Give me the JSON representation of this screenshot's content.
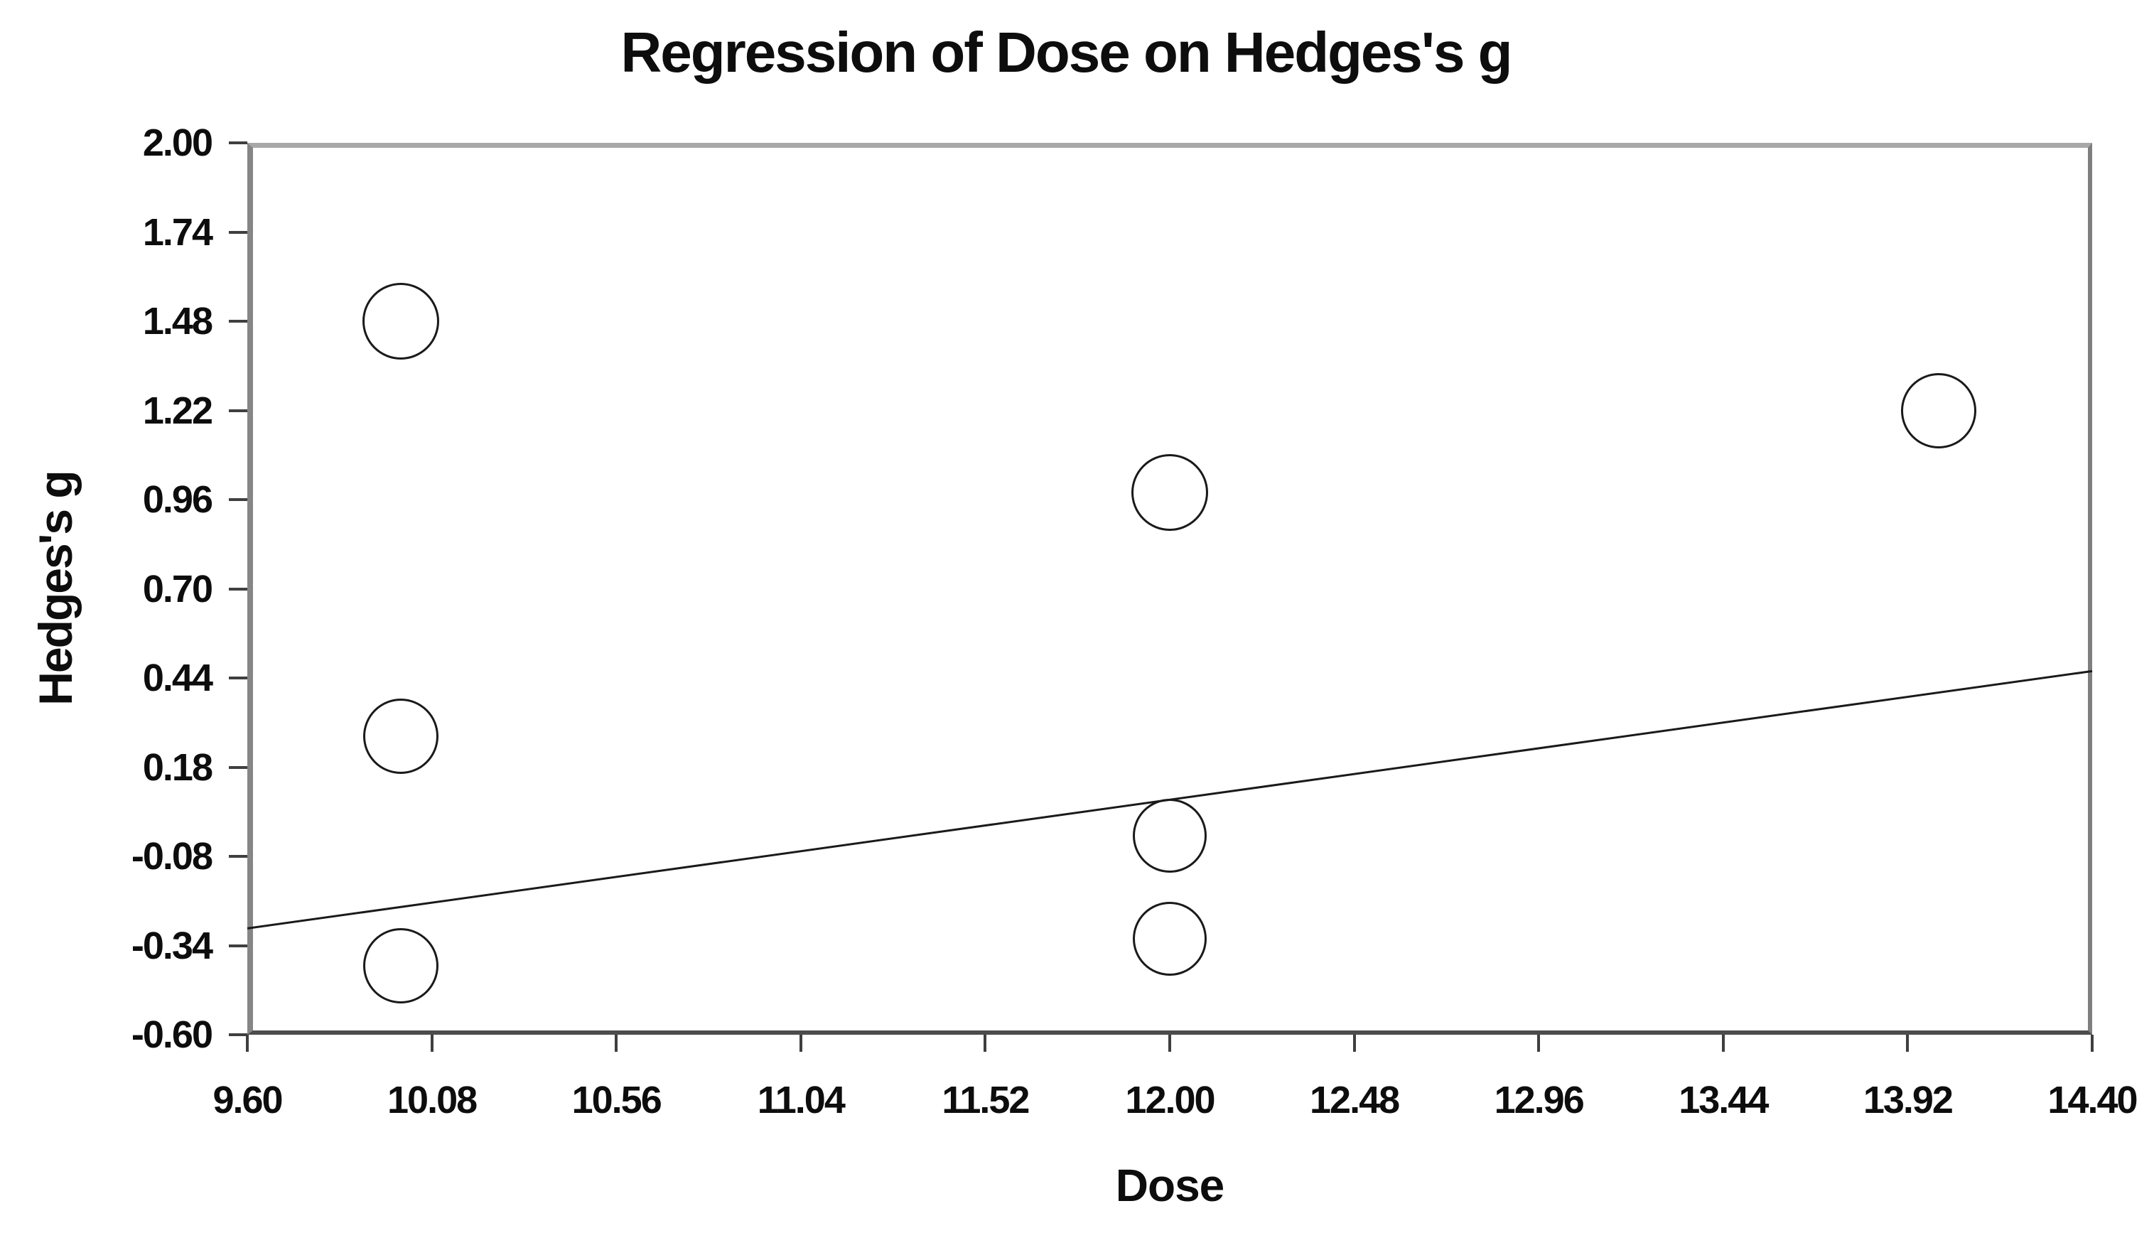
{
  "chart_data": {
    "type": "scatter",
    "subtype": "bubble-meta-regression",
    "title": "Regression of Dose on Hedges's g",
    "xlabel": "Dose",
    "ylabel": "Hedges's g",
    "xlim": [
      9.6,
      14.4
    ],
    "ylim": [
      -0.6,
      2.0
    ],
    "x_ticks": [
      9.6,
      10.08,
      10.56,
      11.04,
      11.52,
      12.0,
      12.48,
      12.96,
      13.44,
      13.92,
      14.4
    ],
    "y_ticks": [
      2.0,
      1.74,
      1.48,
      1.22,
      0.96,
      0.7,
      0.44,
      0.18,
      -0.08,
      -0.34,
      -0.6
    ],
    "tick_decimals": 2,
    "grid": false,
    "legend": null,
    "series": [
      {
        "name": "study-effect-bubbles",
        "marker": "open-circle",
        "points": [
          {
            "x": 10.0,
            "y": 1.48,
            "r": 54
          },
          {
            "x": 10.0,
            "y": 0.27,
            "r": 53
          },
          {
            "x": 10.0,
            "y": -0.4,
            "r": 53
          },
          {
            "x": 12.0,
            "y": 0.98,
            "r": 54
          },
          {
            "x": 12.0,
            "y": -0.02,
            "r": 52
          },
          {
            "x": 12.0,
            "y": -0.32,
            "r": 52
          },
          {
            "x": 14.0,
            "y": 1.22,
            "r": 53
          }
        ]
      }
    ],
    "regression_line": {
      "x_start": 9.6,
      "y_start": -0.29,
      "x_end": 14.4,
      "y_end": 0.46
    },
    "colors": {
      "background": "#ffffff",
      "text": "#0d0d0d",
      "bubble_stroke": "#1a1a1a",
      "regression_line": "#1a1a1a",
      "border_top": "#a8a8a8",
      "border_left": "#868686",
      "border_right": "#7f7f7f",
      "border_bottom": "#4c4c4c",
      "tick": "#3f3f3f"
    }
  }
}
